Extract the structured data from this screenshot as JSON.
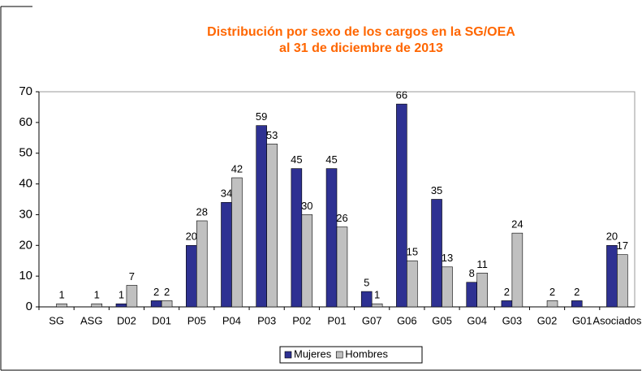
{
  "chart_data": {
    "type": "bar",
    "title": [
      "Distribución por sexo de los cargos en la SG/OEA",
      "al 31 de diciembre de 2013"
    ],
    "categories": [
      "SG",
      "ASG",
      "D02",
      "D01",
      "P05",
      "P04",
      "P03",
      "P02",
      "P01",
      "G07",
      "G06",
      "G05",
      "G04",
      "G03",
      "G02",
      "G01",
      "Asociados"
    ],
    "series": [
      {
        "name": "Mujeres",
        "color": "#2e3192",
        "values": [
          null,
          null,
          1,
          2,
          20,
          34,
          59,
          45,
          45,
          5,
          66,
          35,
          8,
          2,
          null,
          2,
          20
        ]
      },
      {
        "name": "Hombres",
        "color": "#c0c0c0",
        "values": [
          1,
          1,
          7,
          2,
          28,
          42,
          53,
          30,
          26,
          1,
          15,
          13,
          11,
          24,
          2,
          null,
          17
        ]
      }
    ],
    "ylim": [
      0,
      70
    ],
    "yticks": [
      0,
      10,
      20,
      30,
      40,
      50,
      60,
      70
    ],
    "grid": false,
    "legend": "bottom"
  }
}
